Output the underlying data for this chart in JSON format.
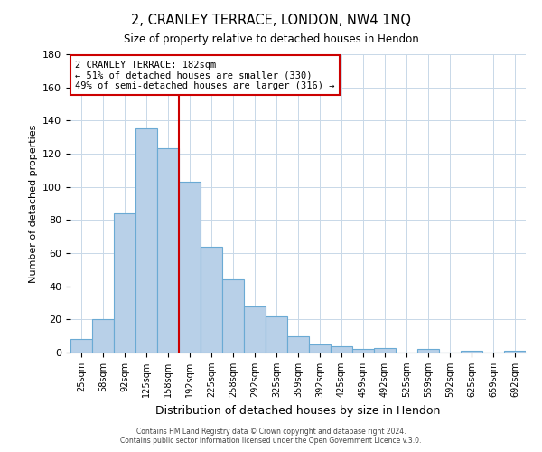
{
  "title": "2, CRANLEY TERRACE, LONDON, NW4 1NQ",
  "subtitle": "Size of property relative to detached houses in Hendon",
  "xlabel": "Distribution of detached houses by size in Hendon",
  "ylabel": "Number of detached properties",
  "bar_labels": [
    "25sqm",
    "58sqm",
    "92sqm",
    "125sqm",
    "158sqm",
    "192sqm",
    "225sqm",
    "258sqm",
    "292sqm",
    "325sqm",
    "359sqm",
    "392sqm",
    "425sqm",
    "459sqm",
    "492sqm",
    "525sqm",
    "559sqm",
    "592sqm",
    "625sqm",
    "659sqm",
    "692sqm"
  ],
  "bar_values": [
    8,
    20,
    84,
    135,
    123,
    103,
    64,
    44,
    28,
    22,
    10,
    5,
    4,
    2,
    3,
    0,
    2,
    0,
    1,
    0,
    1
  ],
  "bar_color": "#b8d0e8",
  "bar_edge_color": "#6aaad4",
  "vline_x": 4.5,
  "vline_color": "#cc0000",
  "annotation_title": "2 CRANLEY TERRACE: 182sqm",
  "annotation_line1": "← 51% of detached houses are smaller (330)",
  "annotation_line2": "49% of semi-detached houses are larger (316) →",
  "annotation_box_color": "#cc0000",
  "ylim": [
    0,
    180
  ],
  "yticks": [
    0,
    20,
    40,
    60,
    80,
    100,
    120,
    140,
    160,
    180
  ],
  "footer1": "Contains HM Land Registry data © Crown copyright and database right 2024.",
  "footer2": "Contains public sector information licensed under the Open Government Licence v.3.0."
}
